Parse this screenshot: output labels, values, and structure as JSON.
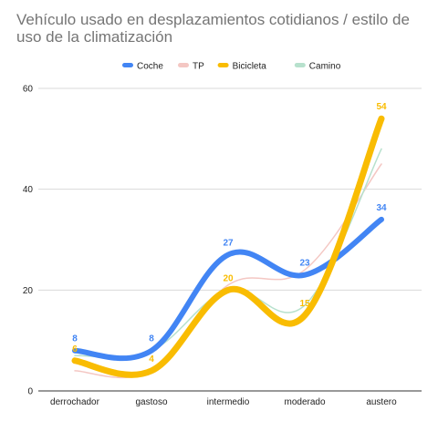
{
  "chart_data": {
    "type": "line",
    "title": "Vehículo usado en desplazamientos cotidianos / estilo de uso de la climatización",
    "categories": [
      "derrochador",
      "gastoso",
      "intermedio",
      "moderado",
      "austero"
    ],
    "ylim": [
      0,
      60
    ],
    "yticks": [
      0,
      20,
      40,
      60
    ],
    "grid": true,
    "legend_position": "top",
    "smooth": true,
    "series": [
      {
        "name": "Coche",
        "color": "#4285f4",
        "values": [
          8,
          8,
          27,
          23,
          34
        ],
        "labels": [
          "8",
          "8",
          "27",
          "23",
          "34"
        ]
      },
      {
        "name": "TP",
        "color": "#f4c7c3",
        "values": [
          4,
          4,
          21,
          24,
          45
        ],
        "labels": null
      },
      {
        "name": "Bicicleta",
        "color": "#f9bc02",
        "values": [
          6,
          4,
          20,
          15,
          54
        ],
        "labels": [
          "6",
          "4",
          "20",
          "15",
          "54"
        ]
      },
      {
        "name": "Camino",
        "color": "#b7e1cd",
        "values": [
          7,
          8,
          20,
          17,
          48
        ],
        "labels": null
      }
    ]
  }
}
